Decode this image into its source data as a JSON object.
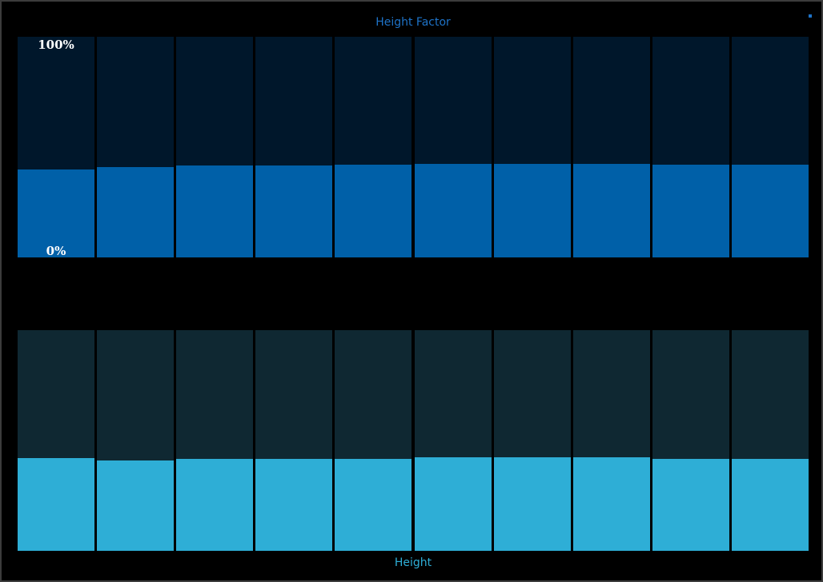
{
  "header": {
    "title": "Height Factor",
    "close_icon": "close-icon"
  },
  "footer": {
    "title": "Height"
  },
  "colors": {
    "top_track": "#00172b",
    "top_fill": "#0060a8",
    "bottom_track": "#0f2832",
    "bottom_fill": "#2eaed6",
    "top_title": "#1e73c8",
    "bottom_title": "#2eaed6"
  },
  "height_factor": {
    "max_label": "100%",
    "min_label": "0%",
    "levels": [
      0.4,
      0.41,
      0.415,
      0.415,
      0.42,
      0.425,
      0.425,
      0.425,
      0.42,
      0.42
    ]
  },
  "height": {
    "levels": [
      0.42,
      0.41,
      0.415,
      0.415,
      0.418,
      0.425,
      0.425,
      0.425,
      0.418,
      0.418
    ]
  }
}
